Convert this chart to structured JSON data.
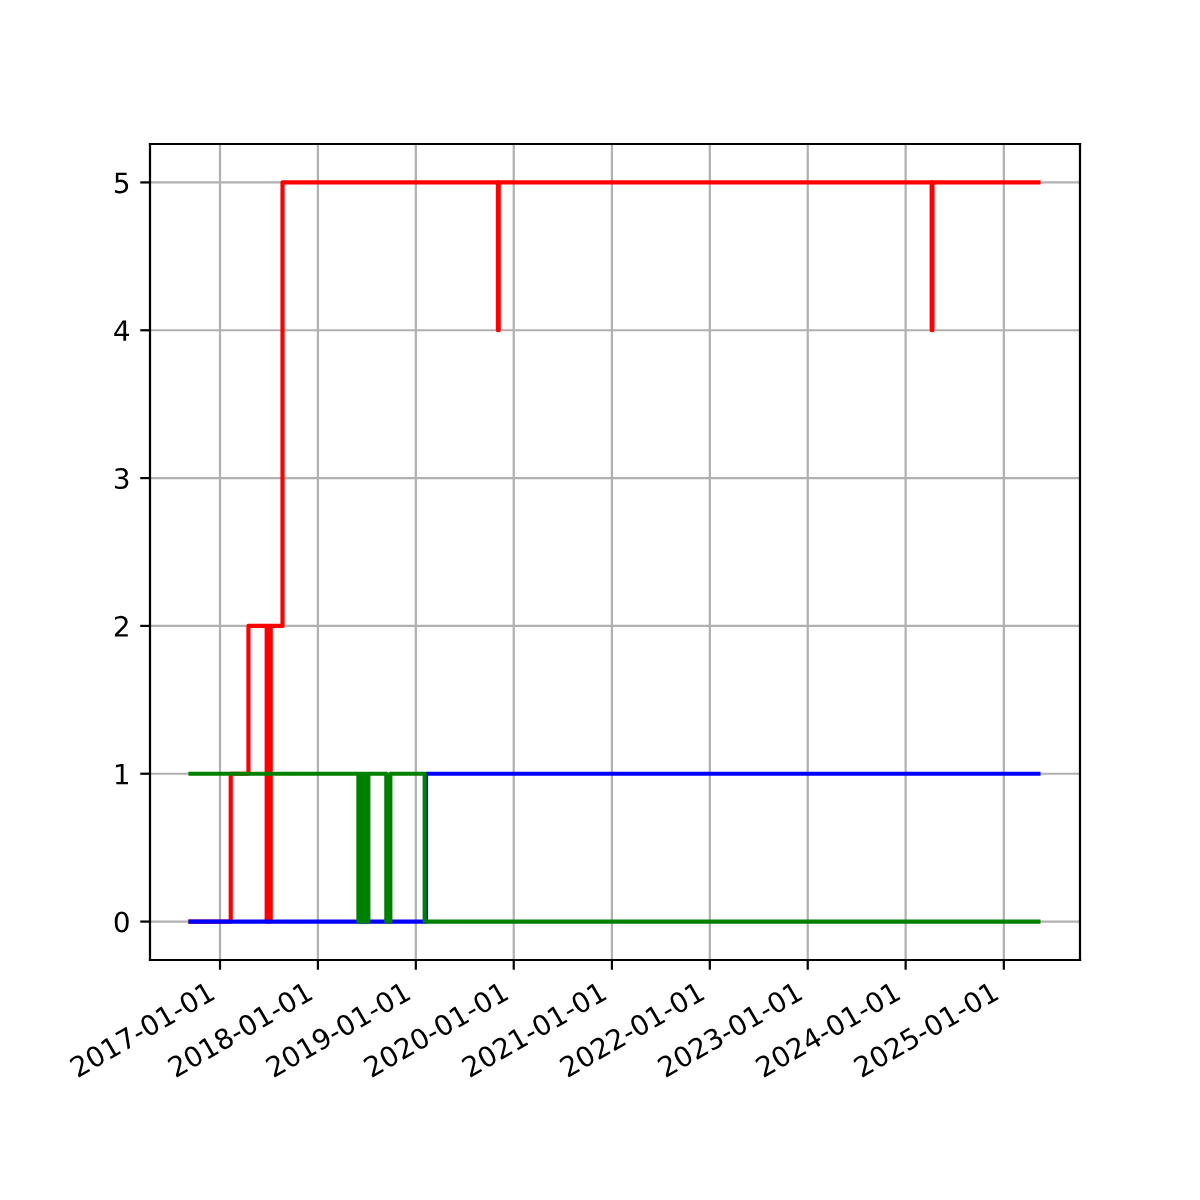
{
  "chart_data": {
    "type": "step",
    "xlim": [
      "2016-04-15",
      "2025-10-12"
    ],
    "ylim": [
      -0.26,
      5.26
    ],
    "yticks": [
      0,
      1,
      2,
      3,
      4,
      5
    ],
    "xticks": [
      "2017-01-01",
      "2018-01-01",
      "2019-01-01",
      "2020-01-01",
      "2021-01-01",
      "2022-01-01",
      "2023-01-01",
      "2024-01-01",
      "2025-01-01"
    ],
    "grid": true,
    "line_style": "solid",
    "marker": "none",
    "series": [
      {
        "color": "#ff0000",
        "x": [
          "2016-09-13",
          "2017-02-10",
          "2017-04-17",
          "2017-06-24",
          "2017-06-27",
          "2017-06-30",
          "2017-07-03",
          "2017-07-06",
          "2017-07-09",
          "2017-08-22",
          "2019-11-03",
          "2019-11-06",
          "2024-04-07",
          "2024-04-10",
          "2025-05-10"
        ],
        "values": [
          0,
          1,
          2,
          0,
          2,
          0,
          2,
          0,
          2,
          5,
          4,
          5,
          4,
          5,
          5
        ]
      },
      {
        "color": "#0000ff",
        "x": [
          "2016-09-13",
          "2019-02-08",
          "2025-05-10"
        ],
        "values": [
          0,
          1,
          1
        ]
      },
      {
        "color": "#008000",
        "x": [
          "2016-09-13",
          "2018-06-01",
          "2018-06-05",
          "2018-06-09",
          "2018-06-13",
          "2018-06-17",
          "2018-06-21",
          "2018-06-25",
          "2018-06-29",
          "2018-07-03",
          "2018-07-08",
          "2018-09-13",
          "2018-09-28",
          "2019-02-03",
          "2025-05-10"
        ],
        "values": [
          1,
          0,
          1,
          0,
          1,
          0,
          1,
          0,
          1,
          0,
          1,
          0,
          1,
          0,
          0
        ]
      }
    ]
  }
}
